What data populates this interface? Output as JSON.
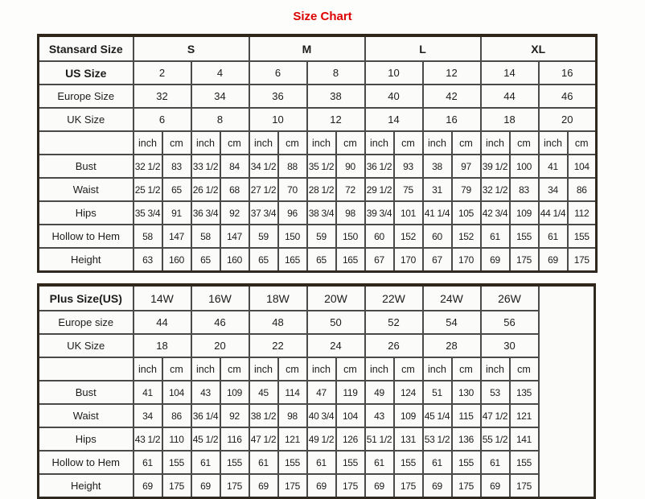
{
  "page": {
    "title": "Size Chart",
    "title_color": "#dd0000"
  },
  "standard_table": {
    "header_label": "Stansard Size",
    "groups": [
      "S",
      "M",
      "L",
      "XL"
    ],
    "group_span": 4,
    "groups_bold": true,
    "trailing_empty": false,
    "size_rows": [
      {
        "label": "US Size",
        "bold": true,
        "span": 2,
        "values": [
          "2",
          "4",
          "6",
          "8",
          "10",
          "12",
          "14",
          "16"
        ]
      },
      {
        "label": "Europe Size",
        "bold": false,
        "span": 2,
        "values": [
          "32",
          "34",
          "36",
          "38",
          "40",
          "42",
          "44",
          "46"
        ]
      },
      {
        "label": "UK Size",
        "bold": false,
        "span": 2,
        "values": [
          "6",
          "8",
          "10",
          "12",
          "14",
          "16",
          "18",
          "20"
        ]
      }
    ],
    "unit_row": [
      "inch",
      "cm",
      "inch",
      "cm",
      "inch",
      "cm",
      "inch",
      "cm",
      "inch",
      "cm",
      "inch",
      "cm",
      "inch",
      "cm",
      "inch",
      "cm"
    ],
    "measure_rows": [
      {
        "label": "Bust",
        "values": [
          "32 1/2",
          "83",
          "33 1/2",
          "84",
          "34 1/2",
          "88",
          "35 1/2",
          "90",
          "36 1/2",
          "93",
          "38",
          "97",
          "39 1/2",
          "100",
          "41",
          "104"
        ]
      },
      {
        "label": "Waist",
        "values": [
          "25 1/2",
          "65",
          "26 1/2",
          "68",
          "27 1/2",
          "70",
          "28 1/2",
          "72",
          "29 1/2",
          "75",
          "31",
          "79",
          "32 1/2",
          "83",
          "34",
          "86"
        ]
      },
      {
        "label": "Hips",
        "values": [
          "35 3/4",
          "91",
          "36 3/4",
          "92",
          "37 3/4",
          "96",
          "38 3/4",
          "98",
          "39 3/4",
          "101",
          "41 1/4",
          "105",
          "42 3/4",
          "109",
          "44 1/4",
          "112"
        ]
      },
      {
        "label": "Hollow to Hem",
        "values": [
          "58",
          "147",
          "58",
          "147",
          "59",
          "150",
          "59",
          "150",
          "60",
          "152",
          "60",
          "152",
          "61",
          "155",
          "61",
          "155"
        ]
      },
      {
        "label": "Height",
        "values": [
          "63",
          "160",
          "65",
          "160",
          "65",
          "165",
          "65",
          "165",
          "67",
          "170",
          "67",
          "170",
          "69",
          "175",
          "69",
          "175"
        ]
      }
    ]
  },
  "plus_table": {
    "header_label": "Plus Size(US)",
    "groups": [
      "14W",
      "16W",
      "18W",
      "20W",
      "22W",
      "24W",
      "26W"
    ],
    "group_span": 2,
    "groups_bold": false,
    "trailing_empty": true,
    "size_rows": [
      {
        "label": "Europe size",
        "bold": false,
        "span": 2,
        "values": [
          "44",
          "46",
          "48",
          "50",
          "52",
          "54",
          "56"
        ]
      },
      {
        "label": "UK Size",
        "bold": false,
        "span": 2,
        "values": [
          "18",
          "20",
          "22",
          "24",
          "26",
          "28",
          "30"
        ]
      }
    ],
    "unit_row": [
      "inch",
      "cm",
      "inch",
      "cm",
      "inch",
      "cm",
      "inch",
      "cm",
      "inch",
      "cm",
      "inch",
      "cm",
      "inch",
      "cm"
    ],
    "measure_rows": [
      {
        "label": "Bust",
        "values": [
          "41",
          "104",
          "43",
          "109",
          "45",
          "114",
          "47",
          "119",
          "49",
          "124",
          "51",
          "130",
          "53",
          "135"
        ]
      },
      {
        "label": "Waist",
        "values": [
          "34",
          "86",
          "36 1/4",
          "92",
          "38 1/2",
          "98",
          "40 3/4",
          "104",
          "43",
          "109",
          "45 1/4",
          "115",
          "47 1/2",
          "121"
        ]
      },
      {
        "label": "Hips",
        "values": [
          "43 1/2",
          "110",
          "45 1/2",
          "116",
          "47 1/2",
          "121",
          "49 1/2",
          "126",
          "51 1/2",
          "131",
          "53 1/2",
          "136",
          "55 1/2",
          "141"
        ]
      },
      {
        "label": "Hollow to Hem",
        "values": [
          "61",
          "155",
          "61",
          "155",
          "61",
          "155",
          "61",
          "155",
          "61",
          "155",
          "61",
          "155",
          "61",
          "155"
        ]
      },
      {
        "label": "Height",
        "values": [
          "69",
          "175",
          "69",
          "175",
          "69",
          "175",
          "69",
          "175",
          "69",
          "175",
          "69",
          "175",
          "69",
          "175"
        ]
      }
    ]
  }
}
